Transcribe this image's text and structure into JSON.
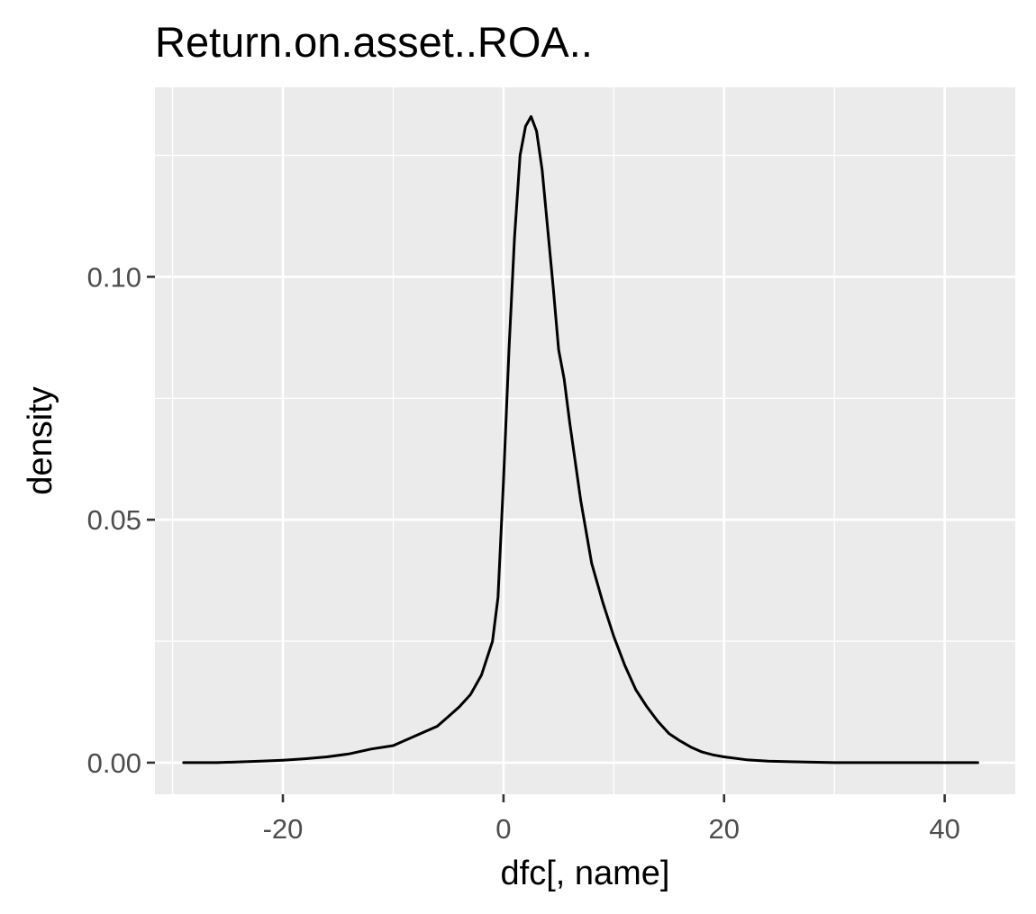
{
  "chart_data": {
    "type": "line",
    "title": "Return.on.asset..ROA..",
    "xlabel": "dfc[, name]",
    "ylabel": "density",
    "xlim": [
      -31.6,
      46.4
    ],
    "ylim": [
      -0.0065,
      0.139
    ],
    "x_ticks": [
      -20,
      0,
      20,
      40
    ],
    "x_tick_labels": [
      "-20",
      "0",
      "20",
      "40"
    ],
    "y_ticks": [
      0.0,
      0.05,
      0.1
    ],
    "y_tick_labels": [
      "0.00",
      "0.05",
      "0.10"
    ],
    "grid": true,
    "background": "#ebebeb",
    "line_color": "#000000",
    "series": [
      {
        "x": [
          -29,
          -26,
          -22,
          -20,
          -18,
          -16,
          -14,
          -12,
          -10,
          -8,
          -6,
          -5,
          -4,
          -3,
          -2,
          -1,
          -0.5,
          0,
          0.5,
          1,
          1.5,
          2,
          2.5,
          3,
          3.5,
          4,
          4.5,
          5,
          5.5,
          6,
          7,
          8,
          9,
          10,
          11,
          12,
          13,
          14,
          15,
          16,
          17,
          18,
          19,
          20,
          22,
          24,
          26,
          28,
          30,
          35,
          43
        ],
        "y": [
          0.0,
          0.0,
          0.0003,
          0.0005,
          0.0008,
          0.0012,
          0.0018,
          0.0028,
          0.0035,
          0.0055,
          0.0075,
          0.0095,
          0.0115,
          0.014,
          0.018,
          0.025,
          0.034,
          0.058,
          0.085,
          0.108,
          0.125,
          0.131,
          0.133,
          0.13,
          0.122,
          0.11,
          0.098,
          0.085,
          0.079,
          0.07,
          0.054,
          0.041,
          0.033,
          0.026,
          0.02,
          0.015,
          0.0115,
          0.0085,
          0.006,
          0.0045,
          0.0032,
          0.0022,
          0.0016,
          0.0012,
          0.0006,
          0.0003,
          0.0002,
          0.0001,
          0.0,
          0.0,
          0.0
        ]
      }
    ]
  }
}
